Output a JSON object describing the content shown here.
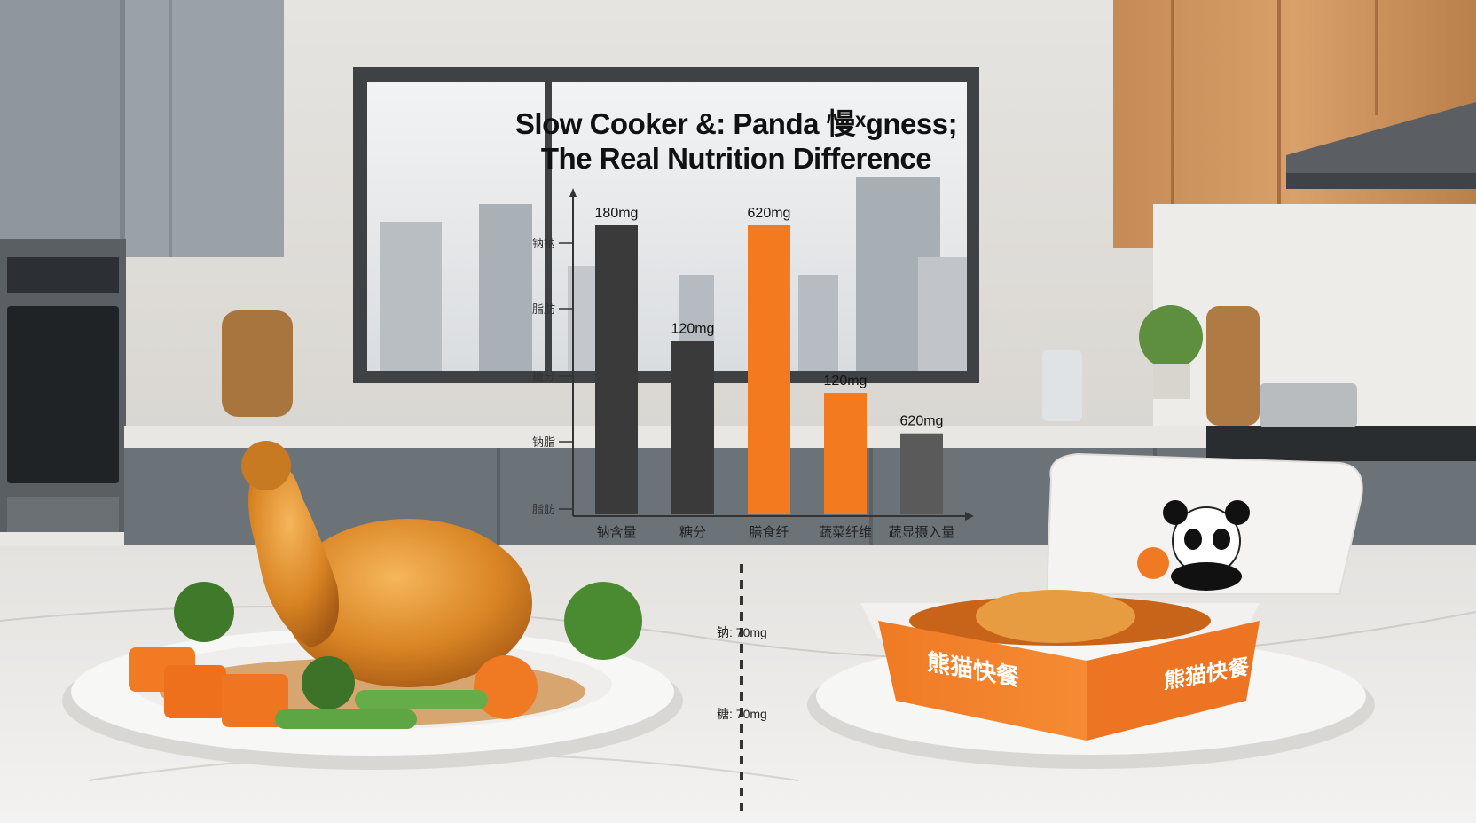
{
  "chart_data": {
    "type": "bar",
    "title_line1": "Slow Cooker &: Panda 慢ˣgness;",
    "title_line2": "The Real Nutrition Difference",
    "categories": [
      "钠含量",
      "糖分",
      "膳食纤",
      "蔬菜纤维",
      "蔬显摄入量"
    ],
    "values": [
      180,
      120,
      620,
      120,
      620
    ],
    "data_labels": [
      "180mg",
      "120mg",
      "620mg",
      "120mg",
      "620mg"
    ],
    "relative_heights": [
      1.0,
      0.6,
      1.0,
      0.42,
      0.28
    ],
    "y_tick_labels": [
      "钠钠",
      "脂肪",
      "糖分",
      "钠脂",
      "脂肪"
    ],
    "bar_colors": [
      "#3a3a3a",
      "#3a3a3a",
      "#f47a1f",
      "#f47a1f",
      "#5a5a5a"
    ],
    "grid": false,
    "legend": "none"
  },
  "annotations": [
    {
      "label": "钠: 70mg"
    },
    {
      "label": "糖: 70mg"
    }
  ],
  "packaging": {
    "brand": "熊猫快餐",
    "brand_side": "熊猫快餐"
  },
  "colors": {
    "accent": "#f47a1f",
    "dark_bar": "#3a3a3a"
  }
}
